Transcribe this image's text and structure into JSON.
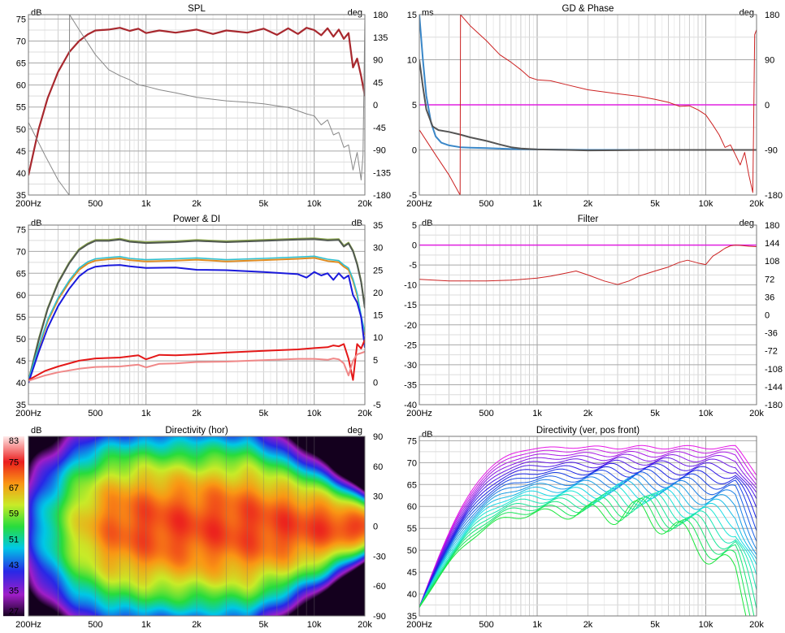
{
  "freq_ticks": [
    {
      "f": 200,
      "label": "200Hz"
    },
    {
      "f": 500,
      "label": "500"
    },
    {
      "f": 1000,
      "label": "1k"
    },
    {
      "f": 2000,
      "label": "2k"
    },
    {
      "f": 5000,
      "label": "5k"
    },
    {
      "f": 10000,
      "label": "10k"
    },
    {
      "f": 20000,
      "label": "20k"
    }
  ],
  "colors": {
    "dark_red": "#a8282e",
    "grey": "#888888",
    "magenta": "#e020e0",
    "blue": "#3a87c8",
    "dark_grey": "#555555",
    "red": "#cc2222"
  },
  "chart_data": [
    {
      "id": "spl",
      "type": "line",
      "title": "SPL",
      "left_unit": "dB",
      "right_unit": "deg",
      "xlim": [
        200,
        20000
      ],
      "ylim": [
        35,
        76
      ],
      "y2lim": [
        -180,
        180
      ],
      "y_ticks": [
        35,
        40,
        45,
        50,
        55,
        60,
        65,
        70,
        75
      ],
      "y2_ticks": [
        -180,
        -135,
        -90,
        -45,
        0,
        45,
        90,
        135,
        180
      ],
      "series": [
        {
          "axis": "left",
          "color": "#a8282e",
          "width": 2.2,
          "x": [
            200,
            230,
            260,
            300,
            350,
            400,
            450,
            500,
            600,
            700,
            800,
            900,
            1000,
            1200,
            1500,
            2000,
            2500,
            3000,
            4000,
            5000,
            6000,
            7000,
            8000,
            9000,
            10000,
            11000,
            12000,
            13000,
            14000,
            15000,
            16000,
            17000,
            18000,
            19000,
            20000
          ],
          "y": [
            39.5,
            50,
            57,
            63,
            67.5,
            70,
            71.5,
            72.4,
            72.6,
            73.0,
            72.3,
            72.8,
            71.8,
            72.4,
            71.9,
            72.6,
            71.6,
            72.4,
            71.9,
            72.8,
            71.4,
            72.9,
            71.6,
            73.0,
            72.5,
            71.3,
            72.9,
            71.0,
            72.6,
            70.5,
            71.8,
            64,
            66,
            62,
            57.5
          ]
        },
        {
          "axis": "right",
          "color": "#888888",
          "width": 1,
          "x": [
            200,
            250,
            300,
            349,
            351,
            400,
            500,
            600,
            700,
            800,
            900,
            1000,
            1200,
            1500,
            2000,
            3000,
            4000,
            5000,
            6000,
            7000,
            8000,
            9000,
            10000,
            11000,
            12000,
            13000,
            14000,
            15000,
            16000,
            17000,
            18000,
            19000,
            19500,
            20000
          ],
          "y": [
            -35,
            -100,
            -150,
            -180,
            180,
            150,
            100,
            70,
            58,
            50,
            40,
            37,
            30,
            24,
            15,
            8,
            5,
            2,
            -2,
            -5,
            -12,
            -18,
            -22,
            -40,
            -30,
            -60,
            -55,
            -85,
            -80,
            -130,
            -95,
            -150,
            -100,
            170
          ]
        }
      ]
    },
    {
      "id": "gd",
      "type": "line",
      "title": "GD & Phase",
      "left_unit": "ms",
      "right_unit": "deg",
      "xlim": [
        200,
        20000
      ],
      "ylim": [
        -5,
        15
      ],
      "y2lim": [
        -180,
        180
      ],
      "y_ticks": [
        -5,
        0,
        5,
        10,
        15
      ],
      "y2_ticks": [
        -180,
        -90,
        0,
        90,
        180
      ],
      "series": [
        {
          "axis": "left",
          "color": "#e020e0",
          "width": 1.5,
          "x": [
            200,
            20000
          ],
          "y": [
            5,
            5
          ]
        },
        {
          "axis": "left",
          "color": "#3a87c8",
          "width": 2,
          "x": [
            200,
            210,
            220,
            235,
            250,
            270,
            300,
            350,
            400,
            500,
            700,
            1000,
            2000,
            5000,
            10000,
            20000
          ],
          "y": [
            15,
            10,
            6,
            3,
            1.5,
            0.8,
            0.5,
            0.3,
            0.25,
            0.2,
            0.1,
            0.05,
            0,
            0,
            0,
            0
          ]
        },
        {
          "axis": "left",
          "color": "#555555",
          "width": 2,
          "x": [
            200,
            210,
            220,
            240,
            260,
            300,
            350,
            400,
            500,
            600,
            700,
            800,
            1000,
            1500,
            2000,
            5000,
            10000,
            20000
          ],
          "y": [
            10,
            7,
            4.5,
            2.6,
            2.2,
            2.0,
            1.7,
            1.4,
            1.0,
            0.6,
            0.3,
            0.15,
            0.05,
            0,
            -0.05,
            0,
            0,
            0
          ]
        },
        {
          "axis": "right",
          "color": "#cc2222",
          "width": 1,
          "x": [
            200,
            250,
            300,
            349,
            351,
            400,
            500,
            600,
            700,
            800,
            900,
            1000,
            1200,
            1500,
            2000,
            3000,
            4000,
            5000,
            6000,
            7000,
            8000,
            9000,
            10000,
            11000,
            12000,
            13000,
            14000,
            15000,
            16000,
            17000,
            18000,
            19000,
            19500,
            20000
          ],
          "y": [
            -50,
            -100,
            -140,
            -180,
            180,
            158,
            128,
            100,
            85,
            70,
            55,
            50,
            48,
            40,
            30,
            22,
            17,
            11,
            5,
            -3,
            -2,
            -10,
            -20,
            -40,
            -60,
            -85,
            -80,
            -100,
            -120,
            -95,
            -140,
            -175,
            140,
            150
          ]
        }
      ]
    },
    {
      "id": "power",
      "type": "line",
      "title": "Power & DI",
      "left_unit": "dB",
      "right_unit": "dB",
      "xlim": [
        200,
        20000
      ],
      "ylim": [
        35,
        76
      ],
      "y2lim": [
        -5,
        35
      ],
      "y_ticks": [
        35,
        40,
        45,
        50,
        55,
        60,
        65,
        70,
        75
      ],
      "y2_ticks": [
        -5,
        0,
        5,
        10,
        15,
        20,
        25,
        30,
        35
      ],
      "series": [
        {
          "axis": "left",
          "color": "#8faa4c",
          "width": 2,
          "x": [
            200,
            230,
            260,
            300,
            350,
            400,
            450,
            500,
            600,
            700,
            800,
            1000,
            1500,
            2000,
            3000,
            5000,
            8000,
            10000,
            12000,
            14000,
            15000,
            16000,
            17000,
            18000,
            19000,
            20000
          ],
          "y": [
            40.5,
            50,
            57,
            63,
            67.5,
            70.5,
            71.8,
            72.6,
            72.6,
            72.9,
            72.4,
            72.1,
            72.3,
            72.6,
            72.3,
            72.6,
            72.9,
            73.0,
            72.7,
            72.8,
            71.3,
            72.0,
            70.2,
            67.2,
            63.2,
            57.2
          ]
        },
        {
          "axis": "left",
          "color": "#505850",
          "width": 2,
          "x": [
            200,
            230,
            260,
            300,
            350,
            400,
            450,
            500,
            600,
            700,
            800,
            1000,
            1500,
            2000,
            3000,
            5000,
            8000,
            10000,
            12000,
            14000,
            15000,
            16000,
            17000,
            18000,
            19000,
            20000
          ],
          "y": [
            40.3,
            49.7,
            56.8,
            62.8,
            67.3,
            70.3,
            71.6,
            72.4,
            72.4,
            72.7,
            72.2,
            71.9,
            72.1,
            72.4,
            72.1,
            72.4,
            72.7,
            72.8,
            72.5,
            72.6,
            71.1,
            71.8,
            70.0,
            67.0,
            63.0,
            57.0
          ]
        },
        {
          "axis": "left",
          "color": "#e08b20",
          "width": 2,
          "x": [
            200,
            230,
            260,
            300,
            350,
            400,
            450,
            500,
            600,
            700,
            800,
            1000,
            1500,
            2000,
            3000,
            5000,
            8000,
            10000,
            12000,
            14000,
            15000,
            16000,
            17000,
            18000,
            19000,
            20000
          ],
          "y": [
            40.4,
            48,
            54,
            59,
            63,
            65.8,
            67.2,
            67.9,
            68.2,
            68.4,
            68.0,
            67.7,
            67.9,
            68.1,
            67.7,
            68.0,
            68.3,
            68.5,
            67.8,
            67.5,
            66.5,
            65.8,
            63.3,
            60.0,
            55.0,
            51.0
          ]
        },
        {
          "axis": "left",
          "color": "#30c0d0",
          "width": 1.6,
          "x": [
            200,
            230,
            260,
            300,
            350,
            400,
            450,
            500,
            600,
            700,
            800,
            1000,
            1500,
            2000,
            3000,
            5000,
            8000,
            10000,
            12000,
            14000,
            15000,
            16000,
            17000,
            18000,
            19000,
            20000
          ],
          "y": [
            40.6,
            48.3,
            54.4,
            59.4,
            63.4,
            66.2,
            67.6,
            68.3,
            68.6,
            68.8,
            68.4,
            68.1,
            68.3,
            68.5,
            68.1,
            68.4,
            68.7,
            68.9,
            68.2,
            67.9,
            66.9,
            66.2,
            63.7,
            60.4,
            55.4,
            51.4
          ]
        },
        {
          "axis": "left",
          "color": "#1a1adc",
          "width": 2,
          "x": [
            200,
            230,
            260,
            300,
            350,
            400,
            450,
            500,
            600,
            700,
            800,
            1000,
            1500,
            2000,
            3000,
            5000,
            8000,
            9000,
            10000,
            11000,
            12000,
            13000,
            14000,
            15000,
            16000,
            17000,
            18000,
            19000,
            20000
          ],
          "y": [
            40,
            47,
            52.5,
            57.5,
            61.5,
            64.3,
            65.8,
            66.5,
            66.8,
            66.9,
            66.6,
            66.2,
            66.3,
            65.8,
            65.7,
            65.3,
            64.8,
            64.0,
            65.3,
            64.5,
            65.0,
            63.5,
            65.0,
            63.8,
            64.5,
            60.0,
            58.3,
            55.0,
            48.0
          ]
        },
        {
          "axis": "right",
          "color": "#e41818",
          "width": 2,
          "x": [
            200,
            250,
            300,
            400,
            500,
            700,
            900,
            1000,
            1200,
            1500,
            2000,
            3000,
            5000,
            8000,
            10000,
            12000,
            13000,
            14000,
            15000,
            16000,
            17000,
            18000,
            19000,
            20000
          ],
          "y": [
            0.5,
            2.5,
            3.5,
            4.8,
            5.3,
            5.5,
            6.0,
            5.1,
            6.1,
            6.0,
            6.2,
            6.6,
            7.0,
            7.3,
            7.6,
            7.8,
            8.2,
            8.0,
            8.5,
            5.2,
            0.5,
            8.5,
            7.5,
            9.5
          ]
        },
        {
          "axis": "right",
          "color": "#f08888",
          "width": 2,
          "x": [
            200,
            250,
            300,
            400,
            500,
            700,
            900,
            1000,
            1200,
            1500,
            2000,
            3000,
            5000,
            8000,
            10000,
            12000,
            13000,
            14000,
            15000,
            16000,
            17000,
            18000,
            19000,
            20000
          ],
          "y": [
            0.3,
            1.5,
            2.2,
            3.0,
            3.4,
            3.5,
            3.9,
            3.3,
            4.1,
            4.2,
            4.5,
            4.6,
            4.9,
            5.2,
            5.2,
            5.0,
            5.3,
            5.1,
            4.2,
            1.5,
            4.8,
            6.2,
            6.5,
            6.8
          ]
        }
      ]
    },
    {
      "id": "filter",
      "type": "line",
      "title": "Filter",
      "left_unit": "dB",
      "right_unit": "deg",
      "xlim": [
        200,
        20000
      ],
      "ylim": [
        -40,
        5
      ],
      "y2lim": [
        -180,
        180
      ],
      "y_ticks": [
        -40,
        -35,
        -30,
        -25,
        -20,
        -15,
        -10,
        -5,
        0,
        5
      ],
      "y2_ticks": [
        -180,
        -144,
        -108,
        -72,
        -36,
        0,
        36,
        72,
        108,
        144,
        180
      ],
      "series": [
        {
          "axis": "left",
          "color": "#e020e0",
          "width": 1.5,
          "x": [
            200,
            20000
          ],
          "y": [
            0,
            0
          ]
        },
        {
          "axis": "left",
          "color": "#cc2222",
          "width": 1,
          "x": [
            200,
            300,
            500,
            700,
            1000,
            1200,
            1500,
            1700,
            2000,
            2500,
            3000,
            3500,
            4000,
            5000,
            6000,
            7000,
            7800,
            9000,
            10000,
            11000,
            12000,
            13000,
            14000,
            15000,
            16000,
            18000,
            20000
          ],
          "y": [
            -8.6,
            -9.0,
            -9.0,
            -8.8,
            -8.3,
            -7.8,
            -7.0,
            -6.5,
            -7.5,
            -9.0,
            -9.9,
            -9.0,
            -7.8,
            -6.5,
            -5.5,
            -4.3,
            -3.8,
            -4.5,
            -4.9,
            -2.8,
            -1.8,
            -0.8,
            -0.2,
            0,
            -0.1,
            -0.3,
            -0.4
          ]
        }
      ]
    },
    {
      "id": "dir_hor",
      "type": "heatmap",
      "title": "Directivity (hor)",
      "left_unit": "dB",
      "right_unit": "deg",
      "xlim": [
        200,
        20000
      ],
      "ylim": [
        -90,
        90
      ],
      "y2_ticks": [
        -90,
        -60,
        -30,
        0,
        30,
        60,
        90
      ],
      "colorbar_ticks": [
        27,
        35,
        43,
        51,
        59,
        67,
        75,
        83
      ]
    },
    {
      "id": "dir_ver",
      "type": "line",
      "title": "Directivity (ver, pos front)",
      "left_unit": "dB",
      "xlim": [
        200,
        20000
      ],
      "ylim": [
        35,
        76
      ],
      "y_ticks": [
        35,
        40,
        45,
        50,
        55,
        60,
        65,
        70,
        75
      ],
      "curve_count": 20
    }
  ]
}
